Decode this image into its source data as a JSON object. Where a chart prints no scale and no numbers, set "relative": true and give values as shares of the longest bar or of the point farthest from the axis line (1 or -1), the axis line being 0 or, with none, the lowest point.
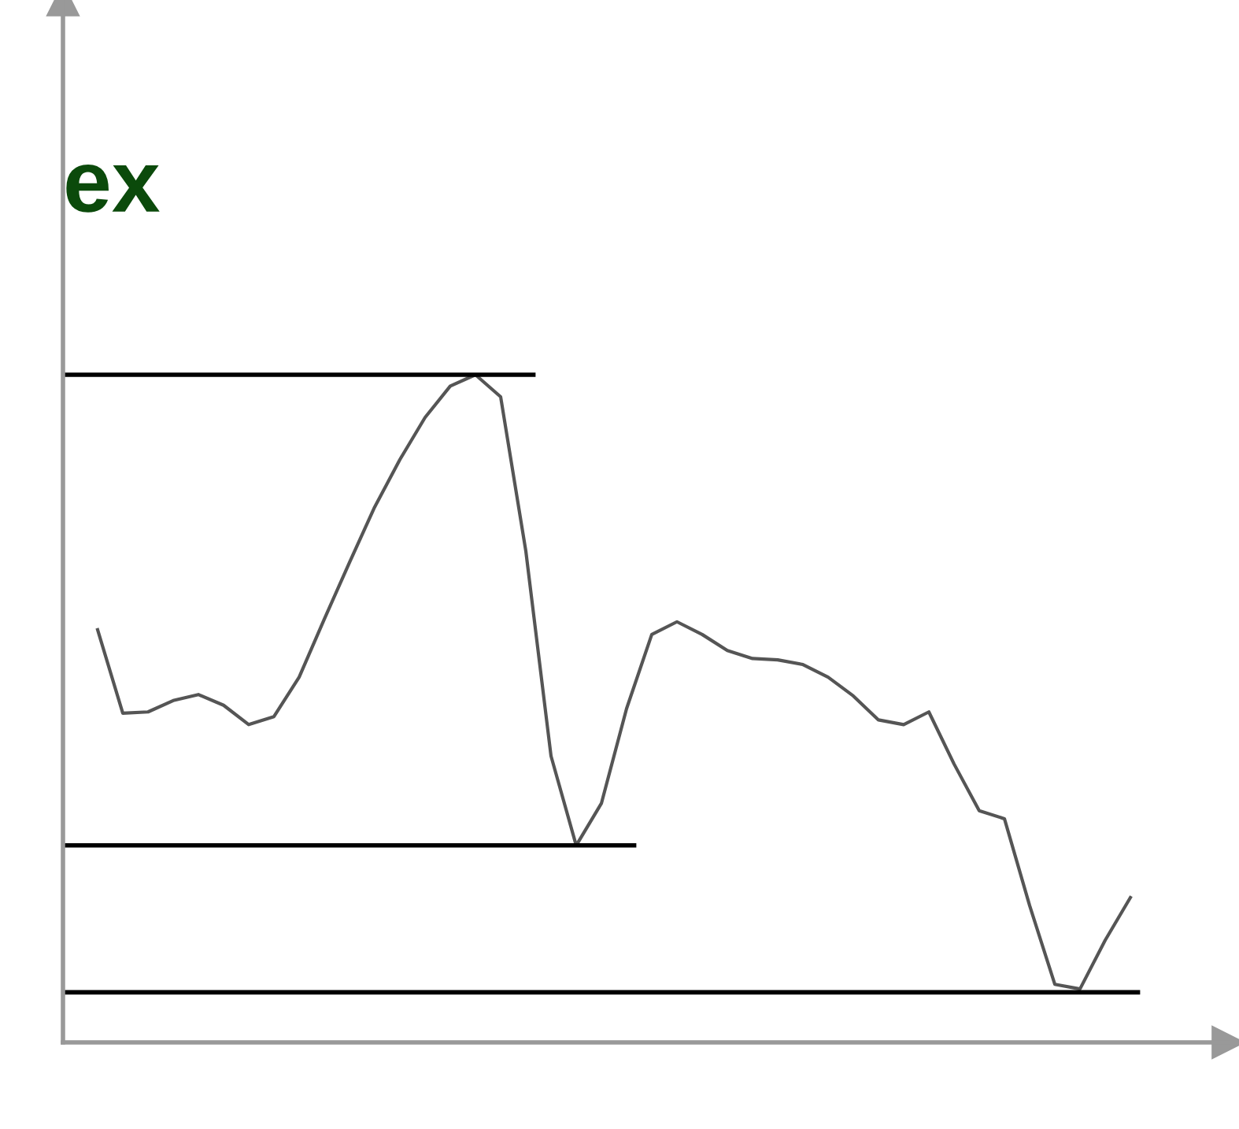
{
  "chart_data": {
    "type": "line",
    "title": "ex",
    "relative": true,
    "categories": [
      null,
      null,
      null,
      null,
      null,
      null,
      null,
      null,
      null,
      null,
      null,
      null,
      null,
      null,
      null,
      null,
      null,
      null,
      null,
      null,
      null,
      null,
      null,
      null,
      null,
      null,
      null,
      null,
      null,
      null,
      null,
      null,
      null,
      null,
      null,
      null,
      null,
      null,
      null,
      null,
      null,
      null
    ],
    "series": [
      {
        "color": "#555555",
        "values": [
          0.618,
          0.493,
          0.495,
          0.512,
          0.521,
          0.505,
          0.476,
          0.488,
          0.547,
          0.634,
          0.719,
          0.802,
          0.873,
          0.936,
          0.983,
          1,
          0.967,
          0.736,
          0.429,
          0.295,
          0.358,
          0.5,
          0.611,
          0.63,
          0.611,
          0.587,
          0.575,
          0.573,
          0.566,
          0.547,
          0.519,
          0.483,
          0.476,
          0.495,
          0.417,
          0.347,
          0.335,
          0.205,
          0.087,
          0.08,
          0.153,
          0.217
        ]
      }
    ],
    "ref_lines": [
      {
        "axis": "y",
        "value": 1,
        "color": "#000000"
      },
      {
        "axis": "y",
        "value": 0.295,
        "color": "#000000"
      },
      {
        "axis": "y",
        "value": 0.075,
        "color": "#000000"
      }
    ]
  }
}
